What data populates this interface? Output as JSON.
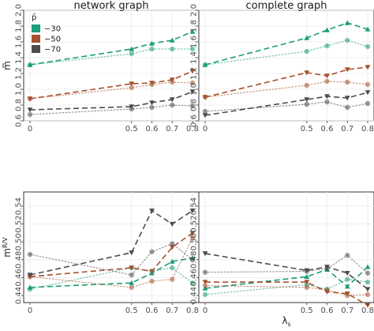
{
  "chart_data": {
    "type": "line",
    "x": [
      0,
      0.5,
      0.6,
      0.7,
      0.8
    ],
    "x_tick_labels": [
      "0",
      "0.5",
      "0.6",
      "0.7",
      "0.8"
    ],
    "xlabel": "λs",
    "column_titles": [
      "network graph",
      "complete graph"
    ],
    "legend": {
      "title": "p̄",
      "placement": "top-left",
      "entries": [
        {
          "label": "−30",
          "color": "#1b9e77",
          "shape": "triangle"
        },
        {
          "label": "−50",
          "color": "#a5522d",
          "shape": "triangle-down"
        },
        {
          "label": "−70",
          "color": "#4d4d4d",
          "shape": "triangle-down"
        }
      ]
    },
    "rows": [
      {
        "ylabel": "m̅",
        "ylim": [
          0.6,
          2.0
        ],
        "y_ticks": [
          0.6,
          0.8,
          1.0,
          1.2,
          1.4,
          1.6,
          1.8,
          2.0
        ],
        "y_tick_labels": [
          "0.6",
          "0.8",
          "1.0",
          "1.2",
          "1.4",
          "1.6",
          "1.8",
          "2.0"
        ],
        "panels": [
          {
            "title": "network graph",
            "series": [
              {
                "color": "#1b9e77",
                "dashed": [
                  1.31,
                  1.51,
                  1.58,
                  1.62,
                  1.73
                ],
                "dotted": [
                  1.31,
                  1.45,
                  1.51,
                  1.51,
                  1.51
                ]
              },
              {
                "color": "#a5522d",
                "dashed": [
                  0.88,
                  1.07,
                  1.08,
                  1.12,
                  1.23
                ],
                "dotted": [
                  0.88,
                  1.02,
                  1.06,
                  1.09,
                  1.08
                ]
              },
              {
                "color": "#4d4d4d",
                "dashed": [
                  0.74,
                  0.78,
                  0.83,
                  0.87,
                  0.97
                ],
                "dotted": [
                  0.68,
                  0.75,
                  0.77,
                  0.8,
                  0.79
                ]
              }
            ]
          },
          {
            "title": "complete graph",
            "series": [
              {
                "color": "#1b9e77",
                "dashed": [
                  1.31,
                  1.65,
                  1.75,
                  1.84,
                  1.76
                ],
                "dotted": [
                  1.31,
                  1.48,
                  1.55,
                  1.62,
                  1.54
                ]
              },
              {
                "color": "#a5522d",
                "dashed": [
                  0.9,
                  1.21,
                  1.17,
                  1.25,
                  1.28
                ],
                "dotted": [
                  0.9,
                  1.05,
                  1.1,
                  1.09,
                  1.06
                ]
              },
              {
                "color": "#4d4d4d",
                "dashed": [
                  0.67,
                  0.87,
                  0.91,
                  0.89,
                  0.96
                ],
                "dotted": [
                  0.72,
                  0.81,
                  0.84,
                  0.77,
                  0.82
                ]
              }
            ]
          }
        ]
      },
      {
        "ylabel": "m^R/V",
        "ylim": [
          0.432,
          0.556
        ],
        "y_ticks": [
          0.44,
          0.46,
          0.48,
          0.5,
          0.52,
          0.54
        ],
        "y_tick_labels": [
          "0.44",
          "0.46",
          "0.48",
          "0.50",
          "0.52",
          "0.54"
        ],
        "panels": [
          {
            "title": "network graph",
            "series": [
              {
                "color": "#1b9e77",
                "dashed": [
                  0.449,
                  0.454,
                  0.465,
                  0.478,
                  0.482
                ],
                "dotted": [
                  0.447,
                  0.471,
                  0.467,
                  0.471,
                  0.454
                ]
              },
              {
                "color": "#a5522d",
                "dashed": [
                  0.461,
                  0.471,
                  0.467,
                  0.494,
                  0.51
                ],
                "dotted": [
                  0.461,
                  0.449,
                  0.456,
                  0.458,
                  0.505
                ]
              },
              {
                "color": "#4d4d4d",
                "dashed": [
                  0.463,
                  0.488,
                  0.535,
                  0.52,
                  0.535
                ],
                "dotted": [
                  0.486,
                  0.463,
                  0.489,
                  0.498,
                  0.48
                ]
              }
            ]
          },
          {
            "title": "complete graph",
            "series": [
              {
                "color": "#1b9e77",
                "dashed": [
                  0.448,
                  0.461,
                  0.469,
                  0.45,
                  0.472
                ],
                "dotted": [
                  0.441,
                  0.452,
                  0.447,
                  0.458,
                  0.455
                ]
              },
              {
                "color": "#a5522d",
                "dashed": [
                  0.455,
                  0.455,
                  0.444,
                  0.442,
                  0.429
                ],
                "dotted": [
                  0.451,
                  0.449,
                  0.446,
                  0.44,
                  0.441
                ]
              },
              {
                "color": "#4d4d4d",
                "dashed": [
                  0.487,
                  0.468,
                  0.472,
                  0.465,
                  0.447
                ],
                "dotted": [
                  0.466,
                  0.467,
                  0.47,
                  0.485,
                  0.465
                ]
              }
            ]
          }
        ]
      }
    ]
  }
}
